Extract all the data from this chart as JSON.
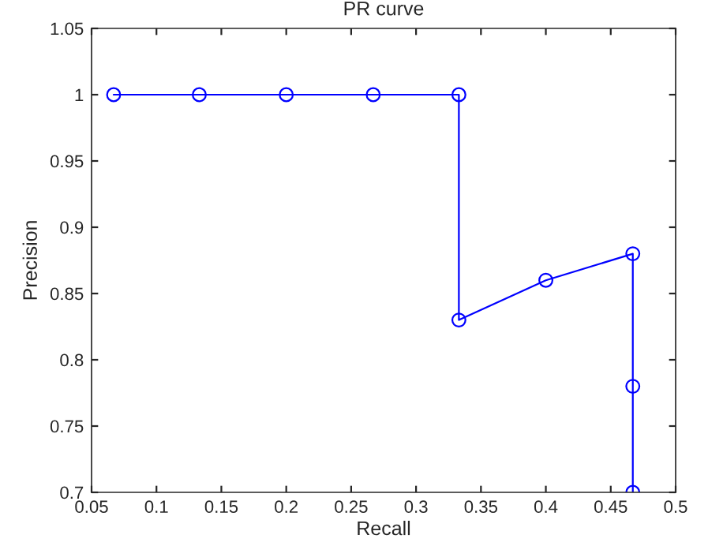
{
  "chart_data": {
    "type": "line",
    "title": "PR curve",
    "xlabel": "Recall",
    "ylabel": "Precision",
    "series": [
      {
        "color": "#0000ff",
        "x": [
          0.067,
          0.133,
          0.2,
          0.267,
          0.333,
          0.333,
          0.4,
          0.467,
          0.467,
          0.467
        ],
        "values": [
          1,
          1,
          1,
          1,
          1,
          0.83,
          0.86,
          0.88,
          0.78,
          0.7
        ]
      }
    ],
    "xlim": [
      0.05,
      0.5
    ],
    "xticks": [
      0.05,
      0.1,
      0.15,
      0.2,
      0.25,
      0.3,
      0.35,
      0.4,
      0.45,
      0.5
    ],
    "ylim": [
      0.7,
      1.05
    ],
    "yticks": [
      0.7,
      0.75,
      0.8,
      0.85,
      0.9,
      0.95,
      1,
      1.05
    ],
    "marker": "circle",
    "line_style": "solid",
    "grid": false,
    "legend": false
  }
}
